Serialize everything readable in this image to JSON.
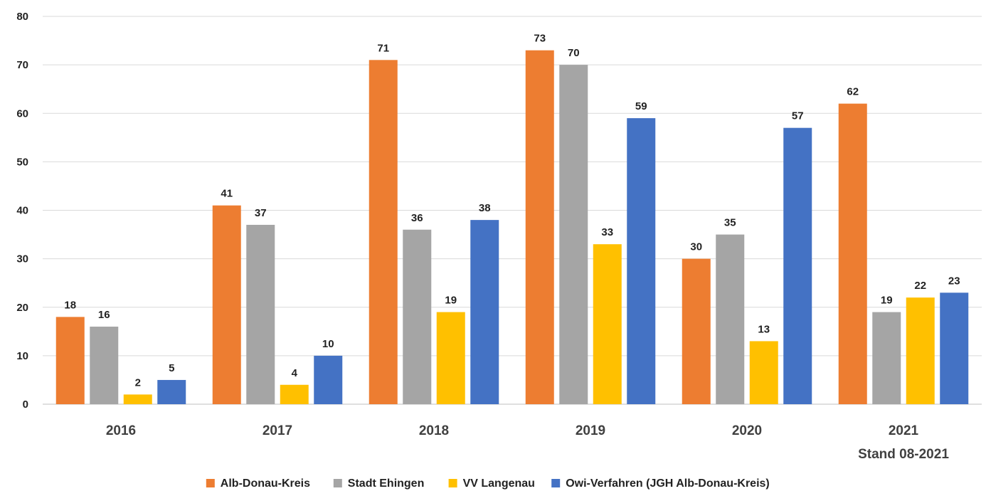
{
  "chart_data": {
    "type": "bar",
    "title": "",
    "xlabel": "",
    "ylabel": "",
    "ylim": [
      0,
      80
    ],
    "yticks": [
      0,
      10,
      20,
      30,
      40,
      50,
      60,
      70,
      80
    ],
    "grid": true,
    "legend_position": "bottom",
    "categories": [
      "2016",
      "2017",
      "2018",
      "2019",
      "2020",
      "2021"
    ],
    "category_sublabels": [
      "",
      "",
      "",
      "",
      "",
      "Stand 08-2021"
    ],
    "series": [
      {
        "name": "Alb-Donau-Kreis",
        "color": "#ED7D31",
        "values": [
          18,
          41,
          71,
          73,
          30,
          62
        ]
      },
      {
        "name": "Stadt Ehingen",
        "color": "#A5A5A5",
        "values": [
          16,
          37,
          36,
          70,
          35,
          19
        ]
      },
      {
        "name": "VV Langenau",
        "color": "#FFC000",
        "values": [
          2,
          4,
          19,
          33,
          13,
          22
        ]
      },
      {
        "name": "Owi-Verfahren (JGH Alb-Donau-Kreis)",
        "color": "#4472C4",
        "values": [
          5,
          10,
          38,
          59,
          57,
          23
        ]
      }
    ]
  }
}
